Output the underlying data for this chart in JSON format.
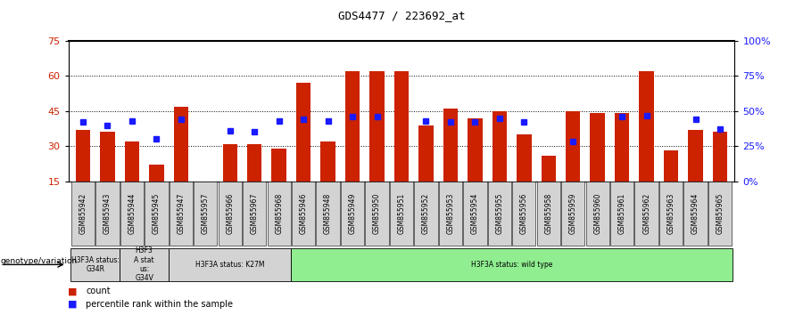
{
  "title": "GDS4477 / 223692_at",
  "samples": [
    "GSM855942",
    "GSM855943",
    "GSM855944",
    "GSM855945",
    "GSM855947",
    "GSM855957",
    "GSM855966",
    "GSM855967",
    "GSM855968",
    "GSM855946",
    "GSM855948",
    "GSM855949",
    "GSM855950",
    "GSM855951",
    "GSM855952",
    "GSM855953",
    "GSM855954",
    "GSM855955",
    "GSM855956",
    "GSM855958",
    "GSM855959",
    "GSM855960",
    "GSM855961",
    "GSM855962",
    "GSM855963",
    "GSM855964",
    "GSM855965"
  ],
  "red_values": [
    37,
    36,
    32,
    22,
    47,
    15,
    31,
    31,
    29,
    57,
    32,
    62,
    62,
    62,
    39,
    46,
    42,
    45,
    35,
    26,
    45,
    44,
    44,
    62,
    28,
    37,
    36
  ],
  "blue_values": [
    42,
    40,
    43,
    30,
    44,
    null,
    36,
    35,
    43,
    44,
    43,
    46,
    46,
    null,
    43,
    42,
    42,
    45,
    42,
    null,
    28,
    null,
    46,
    47,
    null,
    44,
    37
  ],
  "groups": [
    {
      "label": "H3F3A status:\nG34R",
      "start": 0,
      "end": 2,
      "color": "#d3d3d3"
    },
    {
      "label": "H3F3\nA stat\nus:\nG34V",
      "start": 2,
      "end": 4,
      "color": "#d3d3d3"
    },
    {
      "label": "H3F3A status: K27M",
      "start": 4,
      "end": 9,
      "color": "#d3d3d3"
    },
    {
      "label": "H3F3A status: wild type",
      "start": 9,
      "end": 27,
      "color": "#90EE90"
    }
  ],
  "ylim_left": [
    15,
    75
  ],
  "ylim_right": [
    0,
    100
  ],
  "yticks_left": [
    15,
    30,
    45,
    60,
    75
  ],
  "yticks_right": [
    0,
    25,
    50,
    75,
    100
  ],
  "yticklabels_right": [
    "0%",
    "25%",
    "50%",
    "75%",
    "100%"
  ],
  "bar_color": "#cc2200",
  "dot_color": "#1a1aff",
  "background_color": "#ffffff",
  "grid_lines": [
    30,
    45,
    60
  ],
  "bar_width": 0.6
}
